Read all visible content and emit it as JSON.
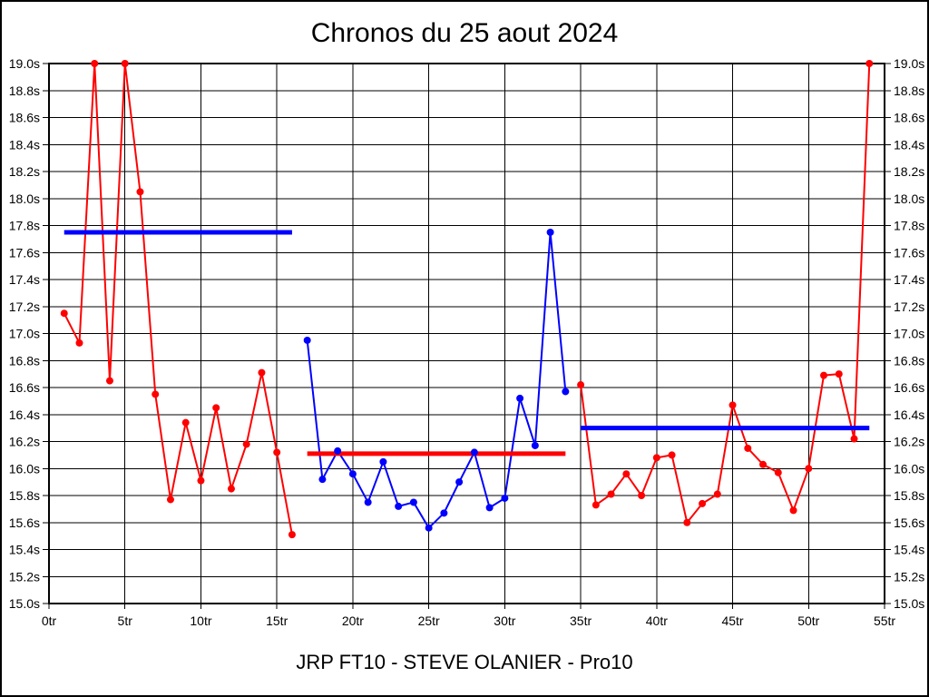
{
  "chart_data": {
    "type": "line",
    "title": "Chronos du 25 aout 2024",
    "footer": "JRP FT10 - STEVE OLANIER - Pro10",
    "x_unit": "tr",
    "y_unit": "s",
    "xlim": [
      0,
      55
    ],
    "ylim": [
      15.0,
      19.0
    ],
    "x_tick_step": 5,
    "y_tick_step": 0.2,
    "grid": true,
    "legend": "none",
    "y_axis_sides": "both",
    "x_tick_labels": [
      "0tr",
      "5tr",
      "10tr",
      "15tr",
      "20tr",
      "25tr",
      "30tr",
      "35tr",
      "40tr",
      "45tr",
      "50tr",
      "55tr"
    ],
    "y_tick_labels": [
      "19.0s",
      "18.8s",
      "18.6s",
      "18.4s",
      "18.2s",
      "18.0s",
      "17.8s",
      "17.6s",
      "17.4s",
      "17.2s",
      "17.0s",
      "16.8s",
      "16.6s",
      "16.4s",
      "16.2s",
      "16.0s",
      "15.8s",
      "15.6s",
      "15.4s",
      "15.2s",
      "15.0s"
    ],
    "colors": {
      "stint_red": "#ff0000",
      "stint_blue": "#0000ff",
      "grid": "#000000",
      "text": "#000000",
      "background": "#ffffff"
    },
    "series": [
      {
        "name": "stint-1",
        "color": "#ff0000",
        "points": [
          [
            1,
            17.15
          ],
          [
            2,
            16.93
          ],
          [
            3,
            19.0
          ],
          [
            4,
            16.65
          ],
          [
            5,
            19.0
          ],
          [
            6,
            18.05
          ],
          [
            7,
            16.55
          ],
          [
            8,
            15.77
          ],
          [
            9,
            16.34
          ],
          [
            10,
            15.91
          ],
          [
            11,
            16.45
          ],
          [
            12,
            15.85
          ],
          [
            13,
            16.18
          ],
          [
            14,
            16.71
          ],
          [
            15,
            16.12
          ],
          [
            16,
            15.51
          ]
        ]
      },
      {
        "name": "stint-2",
        "color": "#0000ff",
        "points": [
          [
            17,
            16.95
          ],
          [
            18,
            15.92
          ],
          [
            19,
            16.13
          ],
          [
            20,
            15.96
          ],
          [
            21,
            15.75
          ],
          [
            22,
            16.05
          ],
          [
            23,
            15.72
          ],
          [
            24,
            15.75
          ],
          [
            25,
            15.56
          ],
          [
            26,
            15.67
          ],
          [
            27,
            15.9
          ],
          [
            28,
            16.12
          ],
          [
            29,
            15.71
          ],
          [
            30,
            15.78
          ],
          [
            31,
            16.52
          ],
          [
            32,
            16.17
          ],
          [
            33,
            17.75
          ],
          [
            34,
            16.57
          ]
        ]
      },
      {
        "name": "stint-3",
        "color": "#ff0000",
        "points": [
          [
            35,
            16.62
          ],
          [
            36,
            15.73
          ],
          [
            37,
            15.81
          ],
          [
            38,
            15.96
          ],
          [
            39,
            15.8
          ],
          [
            40,
            16.08
          ],
          [
            41,
            16.1
          ],
          [
            42,
            15.6
          ],
          [
            43,
            15.74
          ],
          [
            44,
            15.81
          ],
          [
            45,
            16.47
          ],
          [
            46,
            16.15
          ],
          [
            47,
            16.03
          ],
          [
            48,
            15.97
          ],
          [
            49,
            15.69
          ],
          [
            50,
            16.0
          ],
          [
            51,
            16.69
          ],
          [
            52,
            16.7
          ],
          [
            53,
            16.22
          ],
          [
            54,
            19.0
          ]
        ]
      }
    ],
    "average_lines": [
      {
        "name": "avg-stint-1",
        "color": "#0000ff",
        "value": 17.75,
        "from": 1,
        "to": 16
      },
      {
        "name": "avg-stint-2",
        "color": "#ff0000",
        "value": 16.11,
        "from": 17,
        "to": 34
      },
      {
        "name": "avg-stint-3",
        "color": "#0000ff",
        "value": 16.3,
        "from": 35,
        "to": 54
      }
    ]
  }
}
